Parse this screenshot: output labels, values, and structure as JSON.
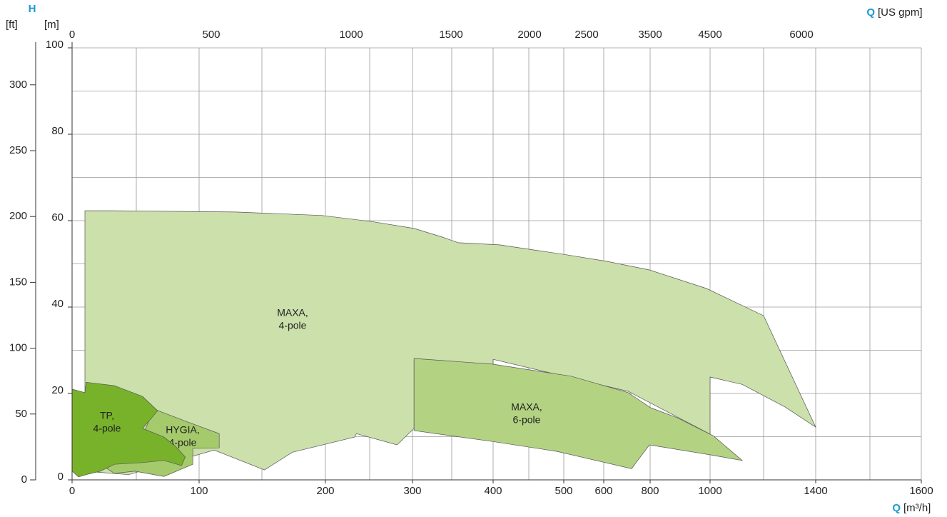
{
  "chart_data": {
    "type": "area",
    "y_label": "H",
    "y2_unit": "[ft]",
    "y_unit": "[m]",
    "x_label": "Q",
    "x_unit": "[m³/h]",
    "x2_label": "Q",
    "x2_unit": "[US gpm]",
    "ylim": [
      0,
      100
    ],
    "yticks": [
      0,
      20,
      40,
      60,
      80,
      100
    ],
    "ygrid": [
      0,
      10,
      20,
      30,
      40,
      50,
      60,
      70,
      80,
      90,
      100
    ],
    "y2lim": [
      0,
      328.08
    ],
    "y2ticks": [
      0,
      50,
      100,
      150,
      200,
      250,
      300
    ],
    "xticks": [
      0,
      100,
      200,
      300,
      400,
      500,
      600,
      800,
      1000,
      1400,
      1600
    ],
    "xgrid": [
      0,
      50,
      100,
      150,
      200,
      250,
      300,
      350,
      400,
      450,
      500,
      600,
      800,
      1000,
      1200,
      1400,
      1500,
      1600
    ],
    "x2ticks": [
      0,
      500,
      1000,
      1500,
      2000,
      2500,
      3500,
      4500,
      6000
    ],
    "grid": true,
    "series": [
      {
        "name": [
          "MAXA,",
          "4-pole"
        ],
        "color": "#cbe0ab",
        "x": [
          10,
          33,
          129,
          197,
          252,
          302,
          338,
          358,
          409,
          500,
          612,
          797,
          988,
          1200,
          1400,
          1282,
          1120,
          1000,
          1000,
          705,
          400,
          400,
          302,
          302,
          282,
          235,
          233,
          174,
          152,
          112,
          44,
          10
        ],
        "y": [
          62.3,
          62.3,
          62.0,
          61.2,
          59.8,
          58.2,
          56.2,
          54.9,
          54.4,
          52.2,
          50.6,
          48.6,
          44.3,
          38.0,
          12.2,
          16.9,
          22.1,
          23.8,
          10.6,
          20.5,
          27.9,
          26.4,
          27.6,
          11.9,
          8.1,
          10.7,
          9.9,
          6.4,
          2.3,
          6.9,
          1.2,
          2.0
        ]
      },
      {
        "name": [
          "MAXA,",
          "6-pole"
        ],
        "color": "#b3d383",
        "x": [
          302,
          399,
          518,
          705,
          802,
          890,
          1012,
          1120,
          1000,
          797,
          720,
          490,
          399,
          302
        ],
        "y": [
          28.1,
          26.8,
          24.0,
          20.2,
          16.7,
          14.4,
          10.2,
          4.5,
          5.8,
          8.1,
          2.6,
          6.6,
          8.9,
          11.4
        ]
      },
      {
        "name": [
          "HYGIA,",
          "4-pole"
        ],
        "color": "#a5ca6c",
        "x": [
          64,
          89,
          116,
          116,
          95,
          95,
          72,
          49,
          33,
          22,
          44,
          55
        ],
        "y": [
          16.4,
          13.6,
          10.7,
          7.4,
          7.3,
          3.6,
          0.8,
          2.0,
          1.5,
          3.6,
          4.5,
          10.2
        ]
      },
      {
        "name": [
          "TP,",
          "4-pole"
        ],
        "color": "#78b22b",
        "x": [
          0,
          10,
          11,
          33,
          55,
          67,
          55,
          72,
          81,
          89,
          86,
          72,
          55,
          33,
          22,
          11,
          5,
          0
        ],
        "y": [
          21.0,
          20.2,
          22.6,
          21.8,
          19.3,
          16.0,
          11.9,
          9.9,
          7.8,
          5.3,
          3.3,
          4.5,
          4.0,
          3.6,
          2.0,
          1.2,
          0.7,
          2.0
        ]
      }
    ]
  }
}
